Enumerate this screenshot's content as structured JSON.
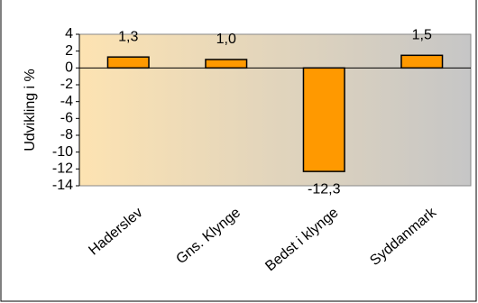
{
  "chart_data": {
    "type": "bar",
    "ylabel": "Udvikling i %",
    "categories": [
      "Haderslev",
      "Gns. Klynge",
      "Bedst i klynge",
      "Syddanmark"
    ],
    "values": [
      1.3,
      1.0,
      -12.3,
      1.5
    ],
    "value_labels": [
      "1,3",
      "1,0",
      "-12,3",
      "1,5"
    ],
    "color": "#ff9900",
    "ylim": [
      -14,
      4
    ],
    "yticks": [
      -14,
      -12,
      -10,
      -8,
      -6,
      -4,
      -2,
      0,
      2,
      4
    ]
  }
}
